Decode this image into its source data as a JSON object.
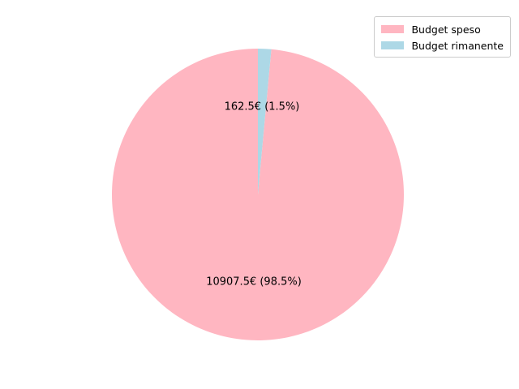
{
  "chart_data": {
    "type": "pie",
    "title": "",
    "start_angle_deg": 90,
    "direction": "counterclockwise",
    "legend_position": "top-right",
    "slices": [
      {
        "label": "Budget speso",
        "value": 10907.5,
        "percent": 98.5,
        "display_text": "10907.5€ (98.5%)",
        "color": "#ffb6c1"
      },
      {
        "label": "Budget rimanente",
        "value": 162.5,
        "percent": 1.5,
        "display_text": "162.5€ (1.5%)",
        "color": "#add8e6"
      }
    ]
  }
}
